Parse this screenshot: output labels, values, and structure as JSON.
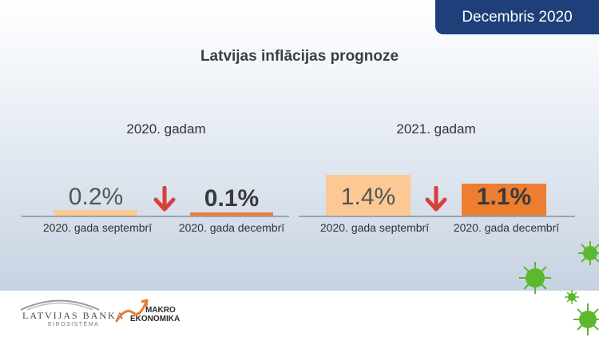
{
  "badge": "Decembris 2020",
  "title": "Latvijas inflācijas prognoze",
  "groups": [
    {
      "label": "2020. gadam"
    },
    {
      "label": "2021. gadam"
    }
  ],
  "chart_data": {
    "type": "bar",
    "title": "Latvijas inflācijas prognoze",
    "categories": [
      "2020. gada septembrī",
      "2020. gada decembrī"
    ],
    "groups": [
      "2020. gadam",
      "2021. gadam"
    ],
    "series": [
      {
        "values": [
          0.2,
          0.1
        ],
        "labels": [
          "0.2%",
          "0.1%"
        ],
        "colors": [
          "#fcc994",
          "#ed7d31"
        ]
      },
      {
        "values": [
          1.4,
          1.1
        ],
        "labels": [
          "1.4%",
          "1.1%"
        ],
        "colors": [
          "#fcc994",
          "#ed7d31"
        ]
      }
    ],
    "unit": "%",
    "grid": false,
    "legend": "none"
  },
  "footer": {
    "bank_name": "LATVIJAS BANKA",
    "bank_sub": "EIROSISTĒMA",
    "makro_1": "MAKRO",
    "makro_2": "EKONOMIKA"
  },
  "colors": {
    "badge_bg": "#1f3f7a",
    "light_bar": "#fcc994",
    "dark_bar": "#ed7d31",
    "arrow": "#d6413a",
    "virus": "#5cb82e"
  }
}
